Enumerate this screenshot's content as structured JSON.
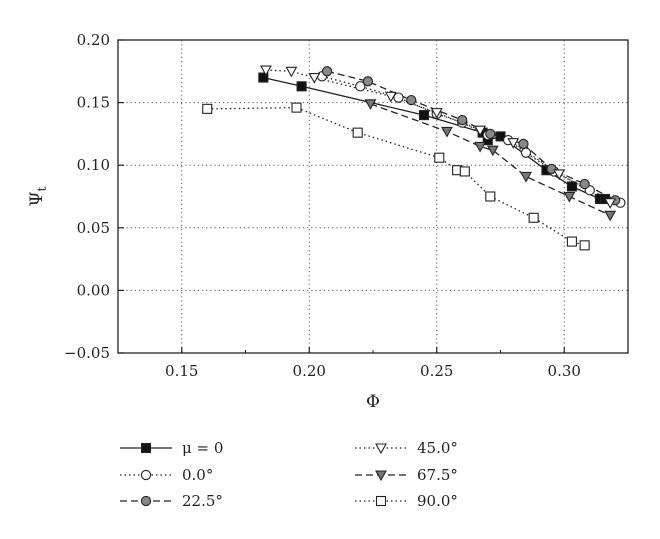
{
  "chart_data": {
    "type": "line",
    "xlabel": "Φ",
    "ylabel": "Ψ",
    "ylabel_sub": "t",
    "xlim": [
      0.125,
      0.325
    ],
    "ylim": [
      -0.05,
      0.2
    ],
    "xticks": [
      0.15,
      0.2,
      0.25,
      0.3
    ],
    "xtick_labels": [
      "0.15",
      "0.20",
      "0.25",
      "0.30"
    ],
    "yticks": [
      -0.05,
      0.0,
      0.05,
      0.1,
      0.15,
      0.2
    ],
    "ytick_labels": [
      "−0.05",
      "0.00",
      "0.05",
      "0.10",
      "0.15",
      "0.20"
    ],
    "grid": true,
    "legend_position": "bottom",
    "series": [
      {
        "name": "μ = 0",
        "dash": "solid",
        "marker": "square",
        "fill": "#111111",
        "x": [
          0.182,
          0.197,
          0.245,
          0.268,
          0.27,
          0.275,
          0.293,
          0.303,
          0.314,
          0.316
        ],
        "y": [
          0.17,
          0.163,
          0.14,
          0.126,
          0.12,
          0.123,
          0.096,
          0.083,
          0.073,
          0.073
        ]
      },
      {
        "name": "0.0°",
        "dash": "dotted",
        "marker": "circle",
        "fill": "#ffffff",
        "x": [
          0.205,
          0.22,
          0.235,
          0.25,
          0.26,
          0.27,
          0.278,
          0.285,
          0.296,
          0.31,
          0.322
        ],
        "y": [
          0.171,
          0.163,
          0.154,
          0.141,
          0.134,
          0.124,
          0.12,
          0.11,
          0.095,
          0.08,
          0.07
        ]
      },
      {
        "name": "22.5°",
        "dash": "dashed",
        "marker": "circle",
        "fill": "#888888",
        "x": [
          0.207,
          0.223,
          0.24,
          0.26,
          0.271,
          0.284,
          0.295,
          0.308,
          0.32
        ],
        "y": [
          0.175,
          0.167,
          0.152,
          0.136,
          0.125,
          0.117,
          0.097,
          0.085,
          0.072
        ]
      },
      {
        "name": "45.0°",
        "dash": "dotted",
        "marker": "triangle-down",
        "fill": "#ffffff",
        "x": [
          0.183,
          0.193,
          0.202,
          0.232,
          0.25,
          0.267,
          0.28,
          0.298,
          0.318
        ],
        "y": [
          0.176,
          0.175,
          0.17,
          0.155,
          0.142,
          0.128,
          0.118,
          0.093,
          0.07
        ]
      },
      {
        "name": "67.5°",
        "dash": "dashed",
        "marker": "triangle-down",
        "fill": "#777777",
        "x": [
          0.224,
          0.254,
          0.267,
          0.272,
          0.285,
          0.302,
          0.318
        ],
        "y": [
          0.149,
          0.127,
          0.115,
          0.112,
          0.091,
          0.075,
          0.06
        ]
      },
      {
        "name": "90.0°",
        "dash": "dotted",
        "marker": "square",
        "fill": "#ffffff",
        "x": [
          0.16,
          0.195,
          0.219,
          0.251,
          0.258,
          0.261,
          0.271,
          0.288,
          0.303,
          0.308
        ],
        "y": [
          0.145,
          0.146,
          0.126,
          0.106,
          0.096,
          0.095,
          0.075,
          0.058,
          0.039,
          0.036
        ]
      }
    ]
  }
}
